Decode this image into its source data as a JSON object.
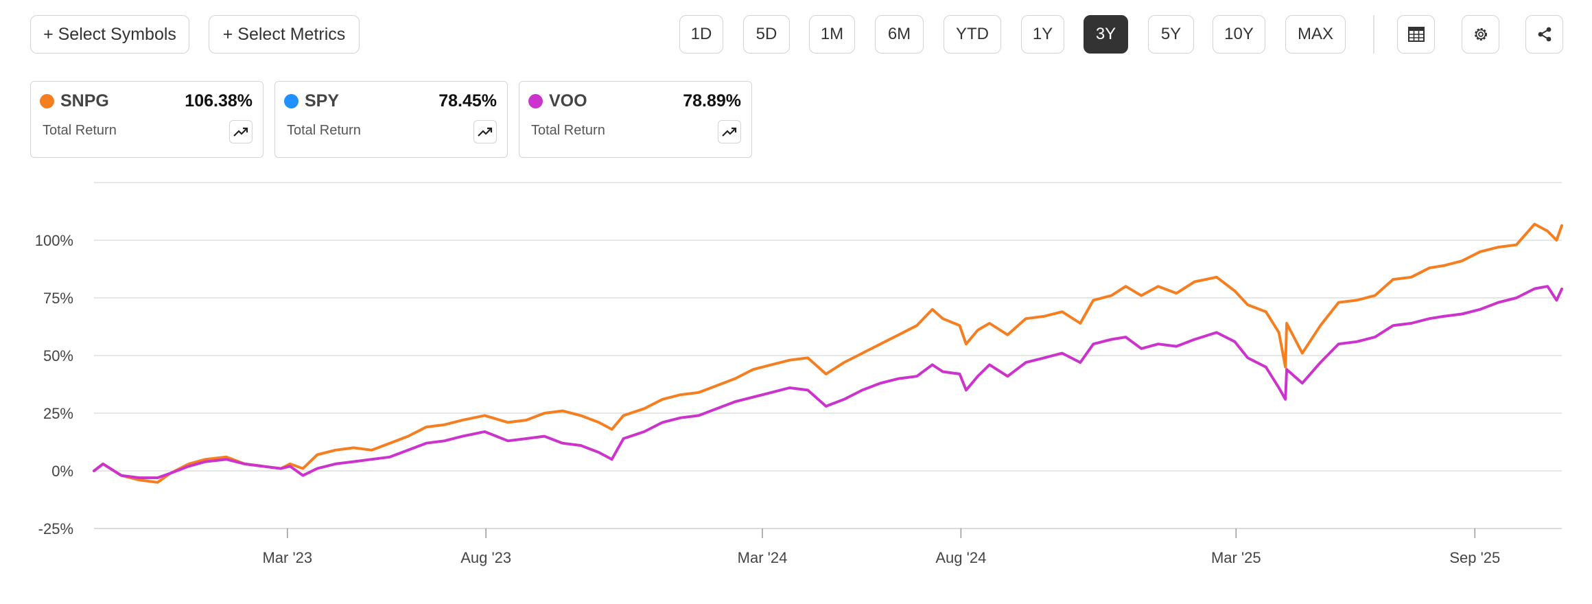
{
  "toolbar": {
    "select_symbols": "+ Select Symbols",
    "select_metrics": "+ Select Metrics",
    "ranges": [
      "1D",
      "5D",
      "1M",
      "6M",
      "YTD",
      "1Y",
      "3Y",
      "5Y",
      "10Y",
      "MAX"
    ],
    "active_range": "3Y",
    "icons": [
      "table-icon",
      "gear-icon",
      "share-icon"
    ]
  },
  "cards": [
    {
      "symbol": "SNPG",
      "value": "106.38%",
      "label": "Total Return",
      "color": "#f57f20"
    },
    {
      "symbol": "SPY",
      "value": "78.45%",
      "label": "Total Return",
      "color": "#1e90ff"
    },
    {
      "symbol": "VOO",
      "value": "78.89%",
      "label": "Total Return",
      "color": "#cc33cc"
    }
  ],
  "chart_data": {
    "type": "line",
    "ylim": [
      -25,
      125
    ],
    "yticks": [
      -25,
      0,
      25,
      50,
      75,
      100
    ],
    "ytick_labels": [
      "-25%",
      "0%",
      "25%",
      "50%",
      "75%",
      "100%"
    ],
    "grid": true,
    "xlim": [
      "2022-10-03",
      "2025-11-07"
    ],
    "xticks": [
      {
        "date": "2023-03-01",
        "label": "Mar '23"
      },
      {
        "date": "2023-08-01",
        "label": "Aug '23"
      },
      {
        "date": "2024-03-01",
        "label": "Mar '24"
      },
      {
        "date": "2024-08-01",
        "label": "Aug '24"
      },
      {
        "date": "2025-03-01",
        "label": "Mar '25"
      },
      {
        "date": "2025-09-01",
        "label": "Sep '25"
      }
    ],
    "series": [
      {
        "name": "SNPG",
        "color": "#f57f20",
        "points": [
          [
            "2022-10-03",
            0
          ],
          [
            "2022-10-10",
            3
          ],
          [
            "2022-10-24",
            -2
          ],
          [
            "2022-11-07",
            -4
          ],
          [
            "2022-11-21",
            -5
          ],
          [
            "2022-12-01",
            -1
          ],
          [
            "2022-12-15",
            3
          ],
          [
            "2022-12-28",
            5
          ],
          [
            "2023-01-13",
            6
          ],
          [
            "2023-01-27",
            3
          ],
          [
            "2023-02-10",
            2
          ],
          [
            "2023-02-24",
            1
          ],
          [
            "2023-03-03",
            3
          ],
          [
            "2023-03-13",
            1
          ],
          [
            "2023-03-24",
            7
          ],
          [
            "2023-04-07",
            9
          ],
          [
            "2023-04-21",
            10
          ],
          [
            "2023-05-05",
            9
          ],
          [
            "2023-05-19",
            12
          ],
          [
            "2023-06-02",
            15
          ],
          [
            "2023-06-16",
            19
          ],
          [
            "2023-06-30",
            20
          ],
          [
            "2023-07-14",
            22
          ],
          [
            "2023-07-31",
            24
          ],
          [
            "2023-08-18",
            21
          ],
          [
            "2023-09-01",
            22
          ],
          [
            "2023-09-15",
            25
          ],
          [
            "2023-09-29",
            26
          ],
          [
            "2023-10-13",
            24
          ],
          [
            "2023-10-27",
            21
          ],
          [
            "2023-11-06",
            18
          ],
          [
            "2023-11-15",
            24
          ],
          [
            "2023-12-01",
            27
          ],
          [
            "2023-12-15",
            31
          ],
          [
            "2023-12-29",
            33
          ],
          [
            "2024-01-12",
            34
          ],
          [
            "2024-01-26",
            37
          ],
          [
            "2024-02-09",
            40
          ],
          [
            "2024-02-23",
            44
          ],
          [
            "2024-03-08",
            46
          ],
          [
            "2024-03-22",
            48
          ],
          [
            "2024-04-05",
            49
          ],
          [
            "2024-04-19",
            42
          ],
          [
            "2024-05-03",
            47
          ],
          [
            "2024-05-17",
            51
          ],
          [
            "2024-05-31",
            55
          ],
          [
            "2024-06-14",
            59
          ],
          [
            "2024-06-28",
            63
          ],
          [
            "2024-07-10",
            70
          ],
          [
            "2024-07-18",
            66
          ],
          [
            "2024-07-31",
            63
          ],
          [
            "2024-08-05",
            55
          ],
          [
            "2024-08-14",
            61
          ],
          [
            "2024-08-23",
            64
          ],
          [
            "2024-09-06",
            59
          ],
          [
            "2024-09-20",
            66
          ],
          [
            "2024-10-04",
            67
          ],
          [
            "2024-10-18",
            69
          ],
          [
            "2024-11-01",
            64
          ],
          [
            "2024-11-11",
            74
          ],
          [
            "2024-11-25",
            76
          ],
          [
            "2024-12-06",
            80
          ],
          [
            "2024-12-18",
            76
          ],
          [
            "2024-12-31",
            80
          ],
          [
            "2025-01-14",
            77
          ],
          [
            "2025-01-28",
            82
          ],
          [
            "2025-02-14",
            84
          ],
          [
            "2025-02-28",
            78
          ],
          [
            "2025-03-10",
            72
          ],
          [
            "2025-03-24",
            69
          ],
          [
            "2025-04-03",
            60
          ],
          [
            "2025-04-08",
            45
          ],
          [
            "2025-04-09",
            64
          ],
          [
            "2025-04-21",
            51
          ],
          [
            "2025-05-05",
            63
          ],
          [
            "2025-05-19",
            73
          ],
          [
            "2025-06-02",
            74
          ],
          [
            "2025-06-16",
            76
          ],
          [
            "2025-06-30",
            83
          ],
          [
            "2025-07-14",
            84
          ],
          [
            "2025-07-28",
            88
          ],
          [
            "2025-08-08",
            89
          ],
          [
            "2025-08-22",
            91
          ],
          [
            "2025-09-05",
            95
          ],
          [
            "2025-09-19",
            97
          ],
          [
            "2025-10-03",
            98
          ],
          [
            "2025-10-17",
            107
          ],
          [
            "2025-10-27",
            104
          ],
          [
            "2025-11-03",
            100
          ],
          [
            "2025-11-07",
            106.38
          ]
        ]
      },
      {
        "name": "VOO",
        "color": "#cc33cc",
        "points": [
          [
            "2022-10-03",
            0
          ],
          [
            "2022-10-10",
            3
          ],
          [
            "2022-10-24",
            -2
          ],
          [
            "2022-11-07",
            -3
          ],
          [
            "2022-11-21",
            -3
          ],
          [
            "2022-12-01",
            -1
          ],
          [
            "2022-12-15",
            2
          ],
          [
            "2022-12-28",
            4
          ],
          [
            "2023-01-13",
            5
          ],
          [
            "2023-01-27",
            3
          ],
          [
            "2023-02-10",
            2
          ],
          [
            "2023-02-24",
            1
          ],
          [
            "2023-03-03",
            2
          ],
          [
            "2023-03-13",
            -2
          ],
          [
            "2023-03-24",
            1
          ],
          [
            "2023-04-07",
            3
          ],
          [
            "2023-04-21",
            4
          ],
          [
            "2023-05-05",
            5
          ],
          [
            "2023-05-19",
            6
          ],
          [
            "2023-06-02",
            9
          ],
          [
            "2023-06-16",
            12
          ],
          [
            "2023-06-30",
            13
          ],
          [
            "2023-07-14",
            15
          ],
          [
            "2023-07-31",
            17
          ],
          [
            "2023-08-18",
            13
          ],
          [
            "2023-09-01",
            14
          ],
          [
            "2023-09-15",
            15
          ],
          [
            "2023-09-29",
            12
          ],
          [
            "2023-10-13",
            11
          ],
          [
            "2023-10-27",
            8
          ],
          [
            "2023-11-06",
            5
          ],
          [
            "2023-11-15",
            14
          ],
          [
            "2023-12-01",
            17
          ],
          [
            "2023-12-15",
            21
          ],
          [
            "2023-12-29",
            23
          ],
          [
            "2024-01-12",
            24
          ],
          [
            "2024-01-26",
            27
          ],
          [
            "2024-02-09",
            30
          ],
          [
            "2024-02-23",
            32
          ],
          [
            "2024-03-08",
            34
          ],
          [
            "2024-03-22",
            36
          ],
          [
            "2024-04-05",
            35
          ],
          [
            "2024-04-19",
            28
          ],
          [
            "2024-05-03",
            31
          ],
          [
            "2024-05-17",
            35
          ],
          [
            "2024-05-31",
            38
          ],
          [
            "2024-06-14",
            40
          ],
          [
            "2024-06-28",
            41
          ],
          [
            "2024-07-10",
            46
          ],
          [
            "2024-07-18",
            43
          ],
          [
            "2024-07-31",
            42
          ],
          [
            "2024-08-05",
            35
          ],
          [
            "2024-08-14",
            41
          ],
          [
            "2024-08-23",
            46
          ],
          [
            "2024-09-06",
            41
          ],
          [
            "2024-09-20",
            47
          ],
          [
            "2024-10-04",
            49
          ],
          [
            "2024-10-18",
            51
          ],
          [
            "2024-11-01",
            47
          ],
          [
            "2024-11-11",
            55
          ],
          [
            "2024-11-25",
            57
          ],
          [
            "2024-12-06",
            58
          ],
          [
            "2024-12-18",
            53
          ],
          [
            "2024-12-31",
            55
          ],
          [
            "2025-01-14",
            54
          ],
          [
            "2025-01-28",
            57
          ],
          [
            "2025-02-14",
            60
          ],
          [
            "2025-02-28",
            56
          ],
          [
            "2025-03-10",
            49
          ],
          [
            "2025-03-24",
            45
          ],
          [
            "2025-04-03",
            36
          ],
          [
            "2025-04-08",
            31
          ],
          [
            "2025-04-09",
            44
          ],
          [
            "2025-04-21",
            38
          ],
          [
            "2025-05-05",
            47
          ],
          [
            "2025-05-19",
            55
          ],
          [
            "2025-06-02",
            56
          ],
          [
            "2025-06-16",
            58
          ],
          [
            "2025-06-30",
            63
          ],
          [
            "2025-07-14",
            64
          ],
          [
            "2025-07-28",
            66
          ],
          [
            "2025-08-08",
            67
          ],
          [
            "2025-08-22",
            68
          ],
          [
            "2025-09-05",
            70
          ],
          [
            "2025-09-19",
            73
          ],
          [
            "2025-10-03",
            75
          ],
          [
            "2025-10-17",
            79
          ],
          [
            "2025-10-27",
            80
          ],
          [
            "2025-11-03",
            74
          ],
          [
            "2025-11-07",
            78.89
          ]
        ]
      }
    ]
  }
}
